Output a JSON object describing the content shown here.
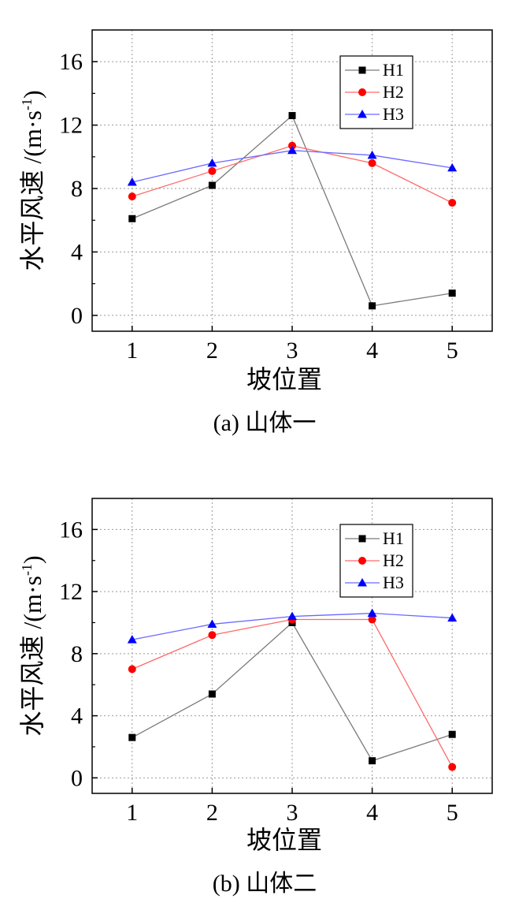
{
  "chart_data": [
    {
      "type": "line",
      "caption": "(a) 山体一",
      "xlabel": "坡位置",
      "ylabel": "水平风速 /(m·s",
      "ylabel_sup": "-1",
      "ylabel_close": ")",
      "x": [
        1,
        2,
        3,
        4,
        5
      ],
      "x_ticks": [
        "1",
        "2",
        "3",
        "4",
        "5"
      ],
      "y_ticks": [
        "0",
        "4",
        "8",
        "12",
        "16"
      ],
      "xlim": [
        0.5,
        5.5
      ],
      "ylim": [
        -1,
        18
      ],
      "grid": true,
      "legend_position": "top-right",
      "series": [
        {
          "name": "H1",
          "color": "#7a7a7a",
          "marker_color": "#000000",
          "marker": "square",
          "values": [
            6.1,
            8.2,
            12.6,
            0.6,
            1.4
          ]
        },
        {
          "name": "H2",
          "color": "#ff6a6a",
          "marker_color": "#ff0000",
          "marker": "circle",
          "values": [
            7.5,
            9.1,
            10.7,
            9.6,
            7.1
          ]
        },
        {
          "name": "H3",
          "color": "#6a6aff",
          "marker_color": "#0000ff",
          "marker": "triangle",
          "values": [
            8.4,
            9.6,
            10.4,
            10.1,
            9.3
          ]
        }
      ]
    },
    {
      "type": "line",
      "caption": "(b) 山体二",
      "xlabel": "坡位置",
      "ylabel": "水平风速 /(m·s",
      "ylabel_sup": "-1",
      "ylabel_close": ")",
      "x": [
        1,
        2,
        3,
        4,
        5
      ],
      "x_ticks": [
        "1",
        "2",
        "3",
        "4",
        "5"
      ],
      "y_ticks": [
        "0",
        "4",
        "8",
        "12",
        "16"
      ],
      "xlim": [
        0.5,
        5.5
      ],
      "ylim": [
        -1,
        18
      ],
      "grid": true,
      "legend_position": "top-right",
      "series": [
        {
          "name": "H1",
          "color": "#7a7a7a",
          "marker_color": "#000000",
          "marker": "square",
          "values": [
            2.6,
            5.4,
            10.0,
            1.1,
            2.8
          ]
        },
        {
          "name": "H2",
          "color": "#ff6a6a",
          "marker_color": "#ff0000",
          "marker": "circle",
          "values": [
            7.0,
            9.2,
            10.2,
            10.2,
            0.7
          ]
        },
        {
          "name": "H3",
          "color": "#6a6aff",
          "marker_color": "#0000ff",
          "marker": "triangle",
          "values": [
            8.9,
            9.9,
            10.4,
            10.6,
            10.3
          ]
        }
      ]
    }
  ]
}
